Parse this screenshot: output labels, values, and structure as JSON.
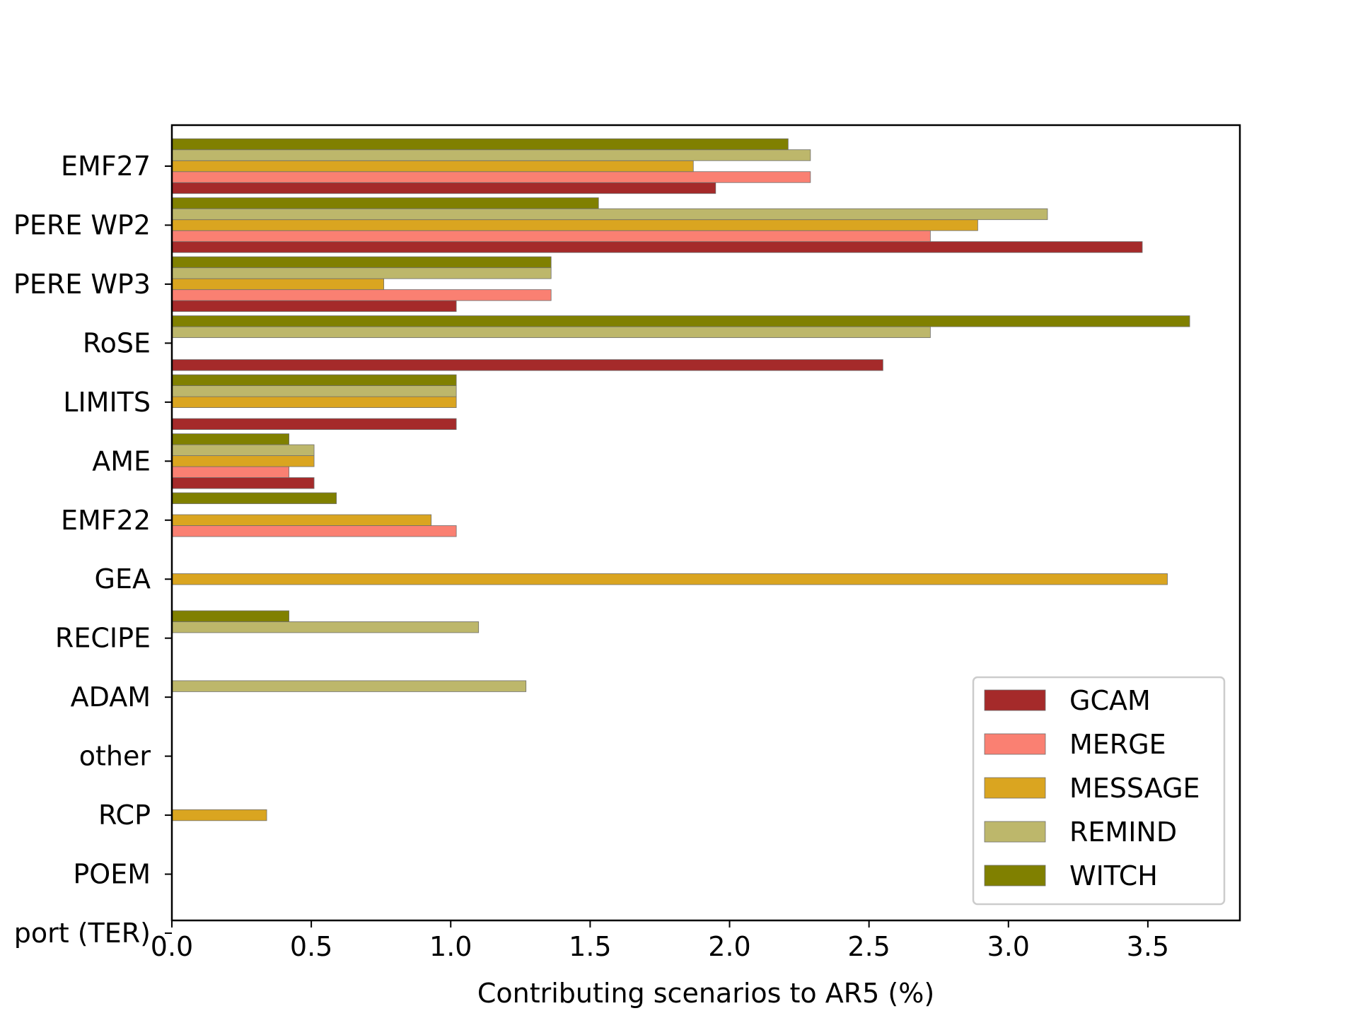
{
  "chart_data": {
    "type": "bar",
    "orientation": "horizontal",
    "xlabel": "Contributing scenarios to AR5 (%)",
    "xlim": [
      0,
      3.83
    ],
    "xticks": [
      "0.0",
      "0.5",
      "1.0",
      "1.5",
      "2.0",
      "2.5",
      "3.0",
      "3.5"
    ],
    "categories": [
      "EMF27",
      "PERE WP2",
      "PERE WP3",
      "RoSE",
      "LIMITS",
      "AME",
      "EMF22",
      "GEA",
      "RECIPE",
      "ADAM",
      "other",
      "RCP",
      "POEM",
      "port (TER)"
    ],
    "legend_position": "lower right",
    "grid": false,
    "series": [
      {
        "name": "GCAM",
        "color": "#a52a2a",
        "values": [
          1.95,
          3.48,
          1.02,
          2.55,
          1.02,
          0.51,
          0,
          0,
          0,
          0,
          0,
          0,
          0,
          0
        ]
      },
      {
        "name": "MERGE",
        "color": "#fa8072",
        "values": [
          2.29,
          2.72,
          1.36,
          0,
          0,
          0.42,
          1.02,
          0,
          0,
          0,
          0,
          0,
          0,
          0
        ]
      },
      {
        "name": "MESSAGE",
        "color": "#daa520",
        "values": [
          1.87,
          2.89,
          0.76,
          0,
          1.02,
          0.51,
          0.93,
          3.57,
          0,
          0,
          0,
          0.34,
          0,
          0
        ]
      },
      {
        "name": "REMIND",
        "color": "#bdb76b",
        "values": [
          2.29,
          3.14,
          1.36,
          2.72,
          1.02,
          0.51,
          0,
          0,
          1.1,
          1.27,
          0,
          0,
          0,
          0
        ]
      },
      {
        "name": "WITCH",
        "color": "#808000",
        "values": [
          2.21,
          1.53,
          1.36,
          3.65,
          1.02,
          0.42,
          0.59,
          0,
          0.42,
          0,
          0,
          0,
          0,
          0
        ]
      }
    ]
  }
}
